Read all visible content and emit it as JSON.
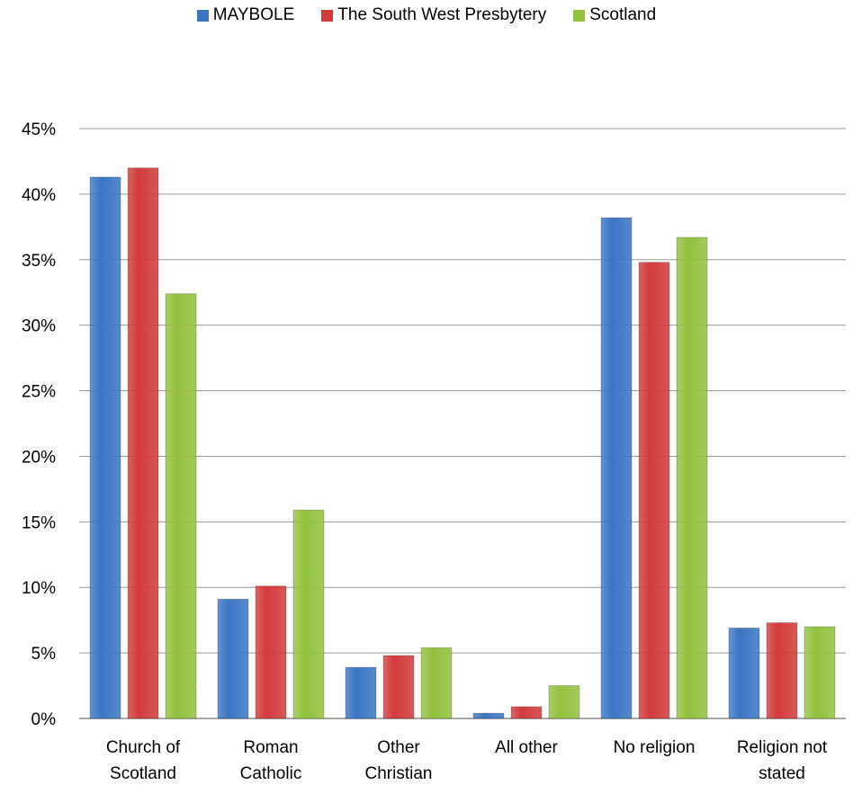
{
  "chart_data": {
    "type": "bar",
    "categories": [
      [
        "Church of",
        "Scotland"
      ],
      [
        "Roman",
        "Catholic"
      ],
      [
        "Other",
        "Christian"
      ],
      [
        "All other"
      ],
      [
        "No religion"
      ],
      [
        "Religion not",
        "stated"
      ]
    ],
    "series": [
      {
        "name": "MAYBOLE",
        "color": "#3a75c4",
        "values": [
          41.3,
          9.1,
          3.9,
          0.4,
          38.2,
          6.9
        ]
      },
      {
        "name": "The South West Presbytery",
        "color": "#d23a3a",
        "values": [
          42.0,
          10.1,
          4.8,
          0.9,
          34.8,
          7.3
        ]
      },
      {
        "name": "Scotland",
        "color": "#92c13d",
        "values": [
          32.4,
          15.9,
          5.4,
          2.5,
          36.7,
          7.0
        ]
      }
    ],
    "ylim": [
      0,
      45
    ],
    "yticks": [
      "0%",
      "5%",
      "10%",
      "15%",
      "20%",
      "25%",
      "30%",
      "35%",
      "40%",
      "45%"
    ],
    "ytick_values": [
      0,
      5,
      10,
      15,
      20,
      25,
      30,
      35,
      40,
      45
    ],
    "grid": true,
    "legend_position": "top-center"
  }
}
